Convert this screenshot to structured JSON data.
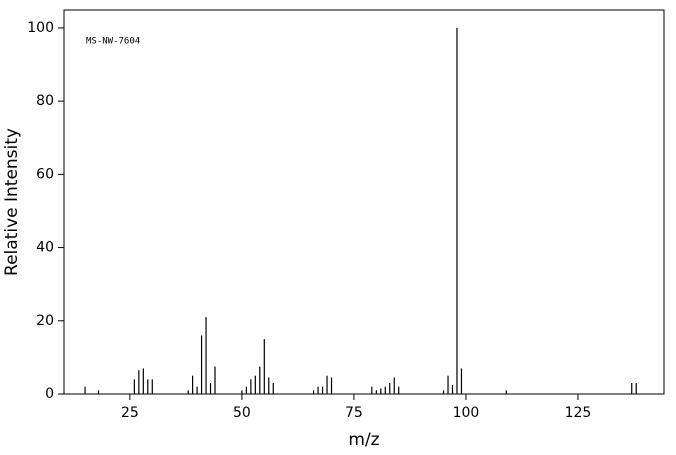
{
  "chart_data": {
    "type": "stem",
    "title": "MS-NW-7604",
    "x_label": "m/z",
    "y_label": "Relative Intensity",
    "x": [
      15,
      18,
      26,
      27,
      28,
      29,
      30,
      38,
      39,
      40,
      41,
      42,
      43,
      44,
      50,
      51,
      52,
      53,
      54,
      55,
      56,
      57,
      66,
      67,
      68,
      69,
      70,
      79,
      80,
      81,
      82,
      83,
      84,
      85,
      95,
      96,
      97,
      98,
      99,
      109,
      137,
      138
    ],
    "values": [
      2,
      1,
      4,
      6.5,
      7,
      4,
      4,
      1,
      5,
      2,
      16,
      21,
      3,
      7.5,
      1,
      2,
      4,
      5,
      7.5,
      15,
      4.5,
      3,
      1,
      2,
      2,
      5,
      4.5,
      2,
      1,
      1.5,
      2,
      3,
      4.5,
      2,
      1,
      5,
      2.5,
      100,
      7,
      1,
      3,
      3
    ],
    "color": "#000000",
    "xlim": [
      10.3,
      144.2
    ],
    "xticks": [
      25,
      50,
      75,
      100,
      125
    ],
    "ylim": [
      0,
      104.9
    ],
    "yticks": [
      0,
      20,
      40,
      60,
      80,
      100
    ]
  }
}
